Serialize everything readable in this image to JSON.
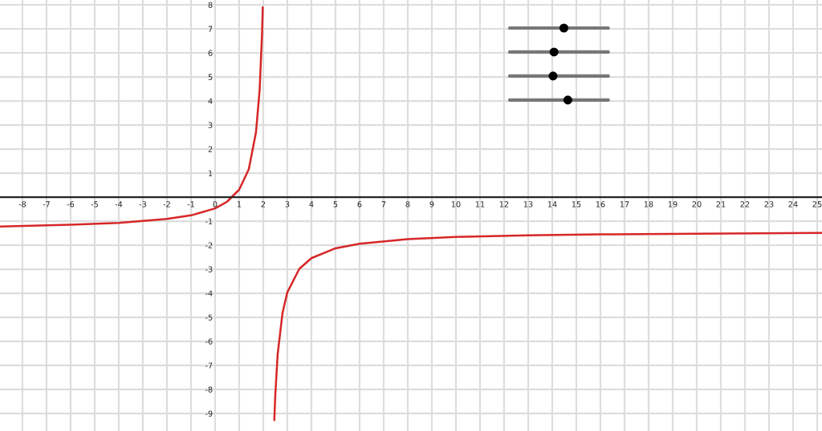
{
  "chart_data": {
    "type": "line",
    "x": [
      -8.9,
      -6,
      -4,
      -2,
      -1,
      0,
      0.5,
      1,
      1.4,
      1.7,
      1.85,
      1.95,
      1.98,
      null,
      2.46,
      2.5,
      2.6,
      2.8,
      3,
      3.5,
      4,
      5,
      6,
      8,
      10,
      13,
      16,
      20,
      25.2
    ],
    "series": [
      {
        "color": "#d62728",
        "values": [
          -1.22,
          -1.15,
          -1.07,
          -0.91,
          -0.76,
          -0.47,
          -0.19,
          0.31,
          1.16,
          2.7,
          4.46,
          6.8,
          7.9,
          null,
          -9.28,
          -8.23,
          -6.53,
          -4.82,
          -3.96,
          -2.98,
          -2.54,
          -2.13,
          -1.94,
          -1.75,
          -1.66,
          -1.59,
          -1.55,
          -1.52,
          -1.49
        ]
      }
    ],
    "xlim": [
      -8.93,
      25.2
    ],
    "ylim": [
      -9.73,
      8.2
    ],
    "xticks": [
      -8,
      -7,
      -6,
      -5,
      -4,
      -3,
      -2,
      -1,
      0,
      1,
      2,
      3,
      4,
      5,
      6,
      7,
      8,
      9,
      10,
      11,
      12,
      13,
      14,
      15,
      16,
      17,
      18,
      19,
      20,
      21,
      22,
      23,
      24,
      25
    ],
    "yticks": [
      -9,
      -8,
      -7,
      -6,
      -5,
      -4,
      -3,
      -2,
      -1,
      1,
      2,
      3,
      4,
      5,
      6,
      7,
      8
    ],
    "grid": true,
    "legend": false,
    "marker": "none",
    "line_style": "solid"
  }
}
